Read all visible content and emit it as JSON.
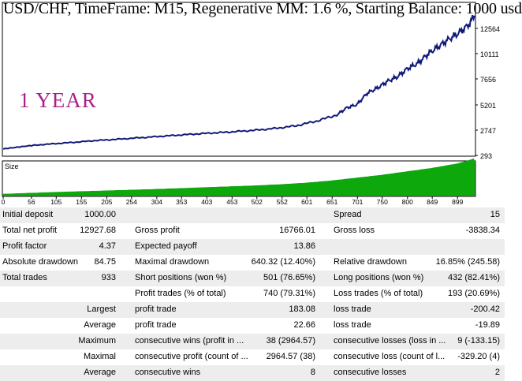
{
  "title": "USD/CHF, TimeFrame: M15, Regenerative MM: 1.6 %, Starting Balance: 1000 usd",
  "annotation": "1 YEAR",
  "colors": {
    "balance_line": "#101a78",
    "size_bars": "#0ca80c",
    "annotation": "#a8208a"
  },
  "size_panel_label": "Size",
  "chart_data": {
    "type": "line",
    "series": [
      {
        "x": [
          0,
          30,
          60,
          100,
          140,
          180,
          220,
          260,
          300,
          340,
          380,
          420,
          460,
          500,
          540,
          580,
          620,
          660,
          680,
          700,
          720,
          740,
          760,
          780,
          800,
          820,
          840,
          860,
          880,
          900,
          920,
          933
        ],
        "values": [
          1000,
          1180,
          1350,
          1500,
          1640,
          1800,
          1920,
          2050,
          2180,
          2320,
          2450,
          2560,
          2680,
          2820,
          3000,
          3250,
          3700,
          4300,
          5000,
          5300,
          6400,
          6900,
          7550,
          8000,
          8800,
          9300,
          10200,
          10900,
          11600,
          12200,
          13000,
          13930
        ]
      }
    ],
    "y_ticks": [
      "12564",
      "10111",
      "7656",
      "5201",
      "2747",
      "293"
    ],
    "x_ticks": [
      "0",
      "56",
      "105",
      "155",
      "205",
      "254",
      "304",
      "353",
      "403",
      "453",
      "502",
      "552",
      "601",
      "651",
      "701",
      "750",
      "800",
      "849",
      "899"
    ],
    "xlim": [
      0,
      933
    ],
    "ylim": [
      293,
      13930
    ],
    "size_panel": {
      "type": "area",
      "x": [
        0,
        100,
        200,
        300,
        400,
        500,
        550,
        600,
        650,
        700,
        750,
        800,
        850,
        900,
        933
      ],
      "values": [
        0.05,
        0.09,
        0.12,
        0.15,
        0.19,
        0.23,
        0.26,
        0.3,
        0.36,
        0.44,
        0.52,
        0.62,
        0.72,
        0.85,
        1.0
      ]
    }
  },
  "stats": [
    [
      [
        "Initial deposit",
        "1000.00"
      ],
      [
        "",
        ""
      ],
      [
        "Spread",
        "15"
      ]
    ],
    [
      [
        "Total net profit",
        "12927.68"
      ],
      [
        "Gross profit",
        "16766.01"
      ],
      [
        "Gross loss",
        "-3838.34"
      ]
    ],
    [
      [
        "Profit factor",
        "4.37"
      ],
      [
        "Expected payoff",
        "13.86"
      ],
      [
        "",
        ""
      ]
    ],
    [
      [
        "Absolute drawdown",
        "84.75"
      ],
      [
        "Maximal drawdown",
        "640.32 (12.40%)"
      ],
      [
        "Relative drawdown",
        "16.85% (245.58)"
      ]
    ],
    [
      [
        "Total trades",
        "933"
      ],
      [
        "Short positions (won %)",
        "501 (76.65%)"
      ],
      [
        "Long positions (won %)",
        "432 (82.41%)"
      ]
    ],
    [
      [
        "",
        ""
      ],
      [
        "Profit trades (% of total)",
        "740 (79.31%)"
      ],
      [
        "Loss trades (% of total)",
        "193 (20.69%)"
      ]
    ],
    [
      [
        "",
        "Largest"
      ],
      [
        "profit trade",
        "183.08"
      ],
      [
        "loss trade",
        "-200.42"
      ]
    ],
    [
      [
        "",
        "Average"
      ],
      [
        "profit trade",
        "22.66"
      ],
      [
        "loss trade",
        "-19.89"
      ]
    ],
    [
      [
        "",
        "Maximum"
      ],
      [
        "consecutive wins (profit in ...",
        "38 (2964.57)"
      ],
      [
        "consecutive losses (loss in ...",
        "9 (-133.15)"
      ]
    ],
    [
      [
        "",
        "Maximal"
      ],
      [
        "consecutive profit (count of ...",
        "2964.57 (38)"
      ],
      [
        "consecutive loss (count of l...",
        "-329.20 (4)"
      ]
    ],
    [
      [
        "",
        "Average"
      ],
      [
        "consecutive wins",
        "8"
      ],
      [
        "consecutive losses",
        "2"
      ]
    ]
  ]
}
